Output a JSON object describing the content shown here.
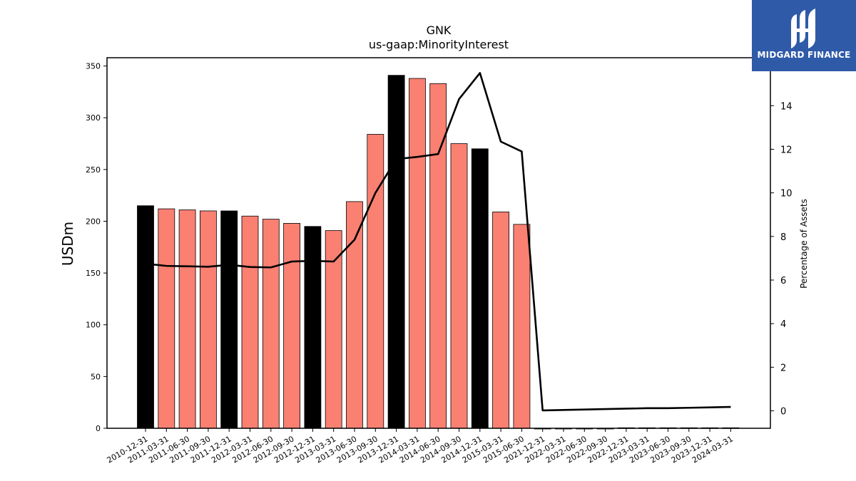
{
  "brand": {
    "name": "MIDGARD FINANCE",
    "color": "#2f5aa8"
  },
  "chart_data": {
    "type": "bar",
    "title": "GNK",
    "subtitle": "us-gaap:MinorityInterest",
    "ylabel": "USDm",
    "y2label": "Percentage of Assets",
    "ylim": [
      0,
      358
    ],
    "y2lim": [
      -0.8,
      16.2
    ],
    "yticks": [
      0,
      50,
      100,
      150,
      200,
      250,
      300,
      350
    ],
    "y2ticks": [
      0,
      2,
      4,
      6,
      8,
      10,
      12,
      14
    ],
    "grid": false,
    "colors": {
      "annual_bar": "#000000",
      "quarter_bar": "#fa8072",
      "line": "#000000"
    },
    "categories": [
      "2010-12-31",
      "2011-03-31",
      "2011-06-30",
      "2011-09-30",
      "2011-12-31",
      "2012-03-31",
      "2012-06-30",
      "2012-09-30",
      "2012-12-31",
      "2013-03-31",
      "2013-06-30",
      "2013-09-30",
      "2013-12-31",
      "2014-03-31",
      "2014-06-30",
      "2014-09-30",
      "2014-12-31",
      "2015-03-31",
      "2015-06-30",
      "2021-12-31",
      "2022-03-31",
      "2022-06-30",
      "2022-09-30",
      "2022-12-31",
      "2023-03-31",
      "2023-06-30",
      "2023-09-30",
      "2023-12-31",
      "2024-03-31"
    ],
    "series": [
      {
        "type": "bar",
        "values": [
          215,
          212,
          211,
          210,
          210,
          205,
          202,
          198,
          195,
          191,
          219,
          284,
          341,
          338,
          333,
          275,
          270,
          209,
          197,
          0,
          0,
          0,
          0,
          0.5,
          0.5,
          0.5,
          0.5,
          0.5,
          0.5
        ],
        "annual": [
          true,
          false,
          false,
          false,
          true,
          false,
          false,
          false,
          true,
          false,
          false,
          false,
          true,
          false,
          false,
          false,
          true,
          false,
          false,
          true,
          false,
          false,
          false,
          true,
          false,
          false,
          false,
          true,
          false
        ]
      },
      {
        "type": "line",
        "axis": "right",
        "values": [
          6.75,
          6.65,
          6.63,
          6.61,
          6.7,
          6.6,
          6.58,
          6.85,
          6.88,
          6.85,
          7.85,
          10.0,
          11.55,
          11.65,
          11.78,
          14.3,
          15.5,
          12.35,
          11.9,
          0.02,
          0.04,
          0.06,
          0.08,
          0.1,
          0.12,
          0.12,
          0.14,
          0.16,
          0.18
        ]
      }
    ]
  }
}
